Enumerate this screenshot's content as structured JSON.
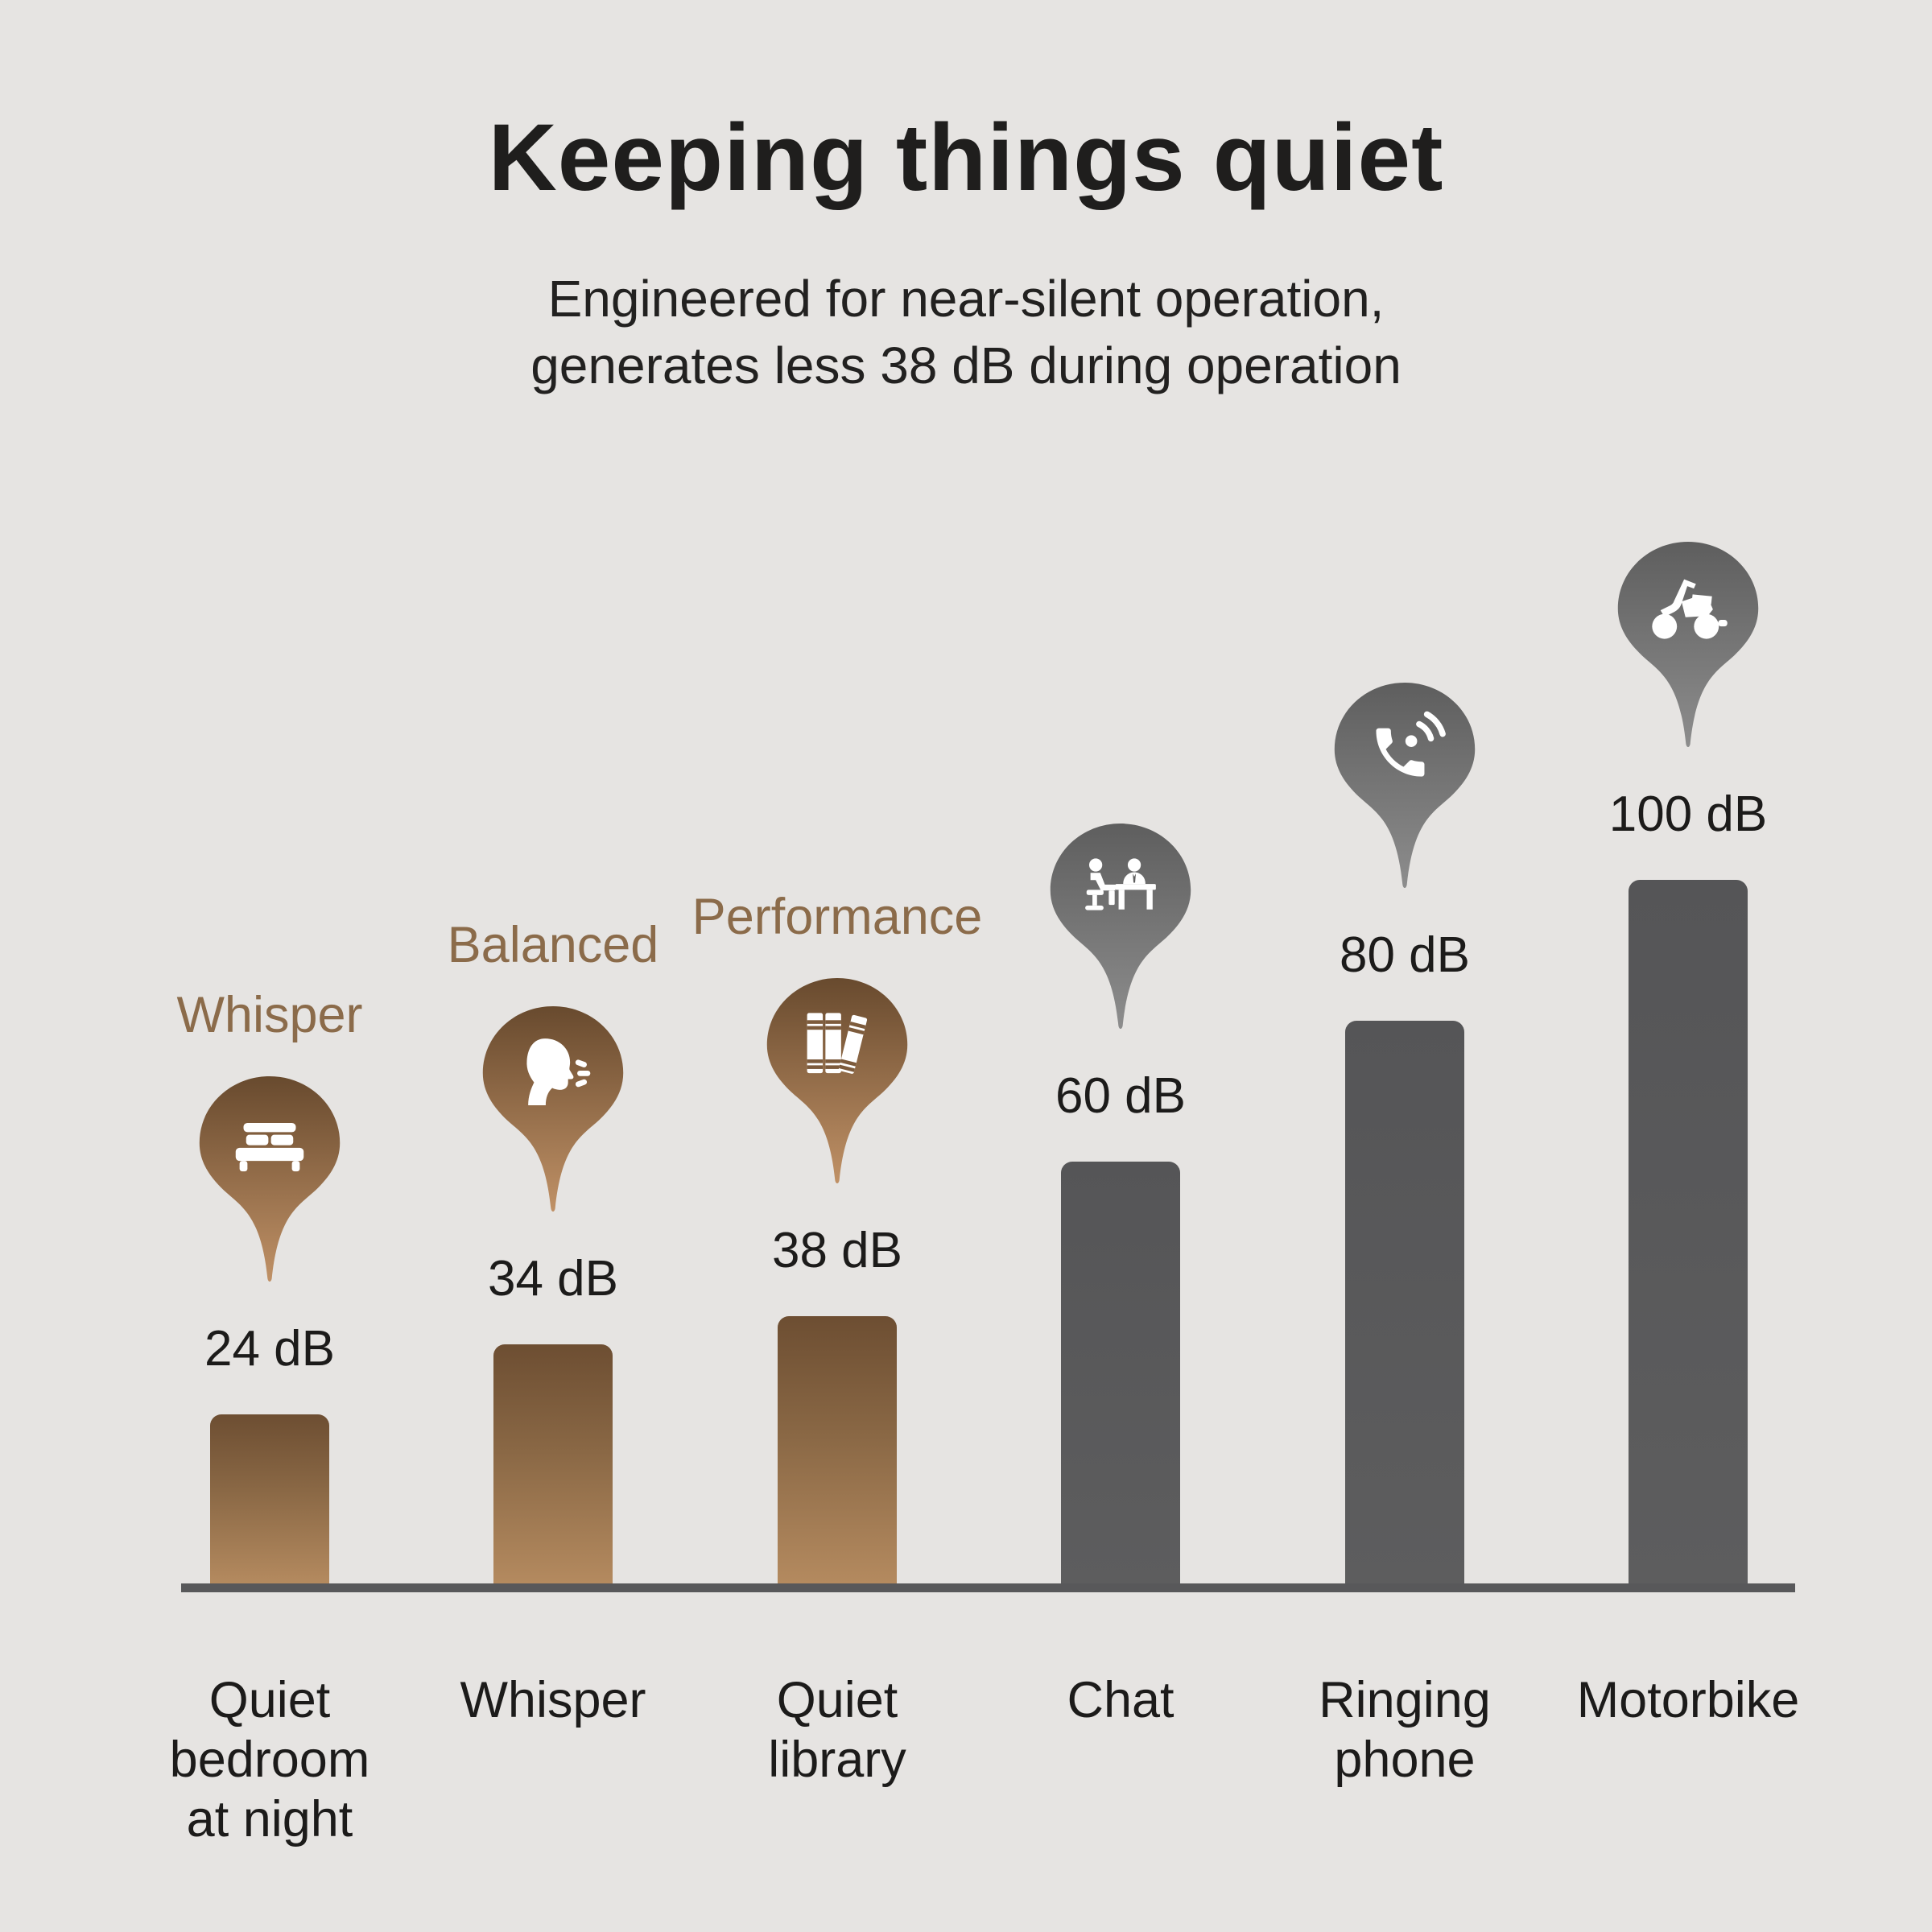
{
  "title": "Keeping things quiet",
  "subtitle": "Engineered for near-silent operation,\ngenerates less 38 dB during operation",
  "colors": {
    "background": "#e6e4e2",
    "text_dark": "#1c1b1a",
    "bronze_text": "#8b6b4a",
    "bronze_gradient_top": "#6d4e32",
    "bronze_gradient_bottom": "#b48a5f",
    "gray_bar": "#58585a",
    "gray_pin_top": "#5e5e5e",
    "gray_pin_bottom": "#8d8d8d",
    "axis": "#58585a"
  },
  "chart_data": {
    "type": "bar",
    "title": "Keeping things quiet",
    "subtitle": "Engineered for near-silent operation, generates less 38 dB during operation",
    "unit": "dB",
    "ylim": [
      0,
      100
    ],
    "grid": false,
    "legend": false,
    "categories": [
      "Quiet bedroom at night",
      "Whisper",
      "Quiet library",
      "Chat",
      "Ringing phone",
      "Motorbike"
    ],
    "values": [
      24,
      34,
      38,
      60,
      80,
      100
    ],
    "bars": [
      {
        "category": "Quiet\nbedroom\nat night",
        "value": 24,
        "value_label": "24 dB",
        "mode_label": "Whisper",
        "icon": "bed-icon",
        "theme": "bronze"
      },
      {
        "category": "Whisper",
        "value": 34,
        "value_label": "34 dB",
        "mode_label": "Balanced",
        "icon": "whisper-face-icon",
        "theme": "bronze"
      },
      {
        "category": "Quiet\nlibrary",
        "value": 38,
        "value_label": "38 dB",
        "mode_label": "Performance",
        "icon": "books-icon",
        "theme": "bronze"
      },
      {
        "category": "Chat",
        "value": 60,
        "value_label": "60 dB",
        "icon": "people-chat-icon",
        "theme": "gray"
      },
      {
        "category": "Ringing\nphone",
        "value": 80,
        "value_label": "80 dB",
        "icon": "ringing-phone-icon",
        "theme": "gray"
      },
      {
        "category": "Motorbike",
        "value": 100,
        "value_label": "100 dB",
        "icon": "motorbike-icon",
        "theme": "gray"
      }
    ]
  }
}
